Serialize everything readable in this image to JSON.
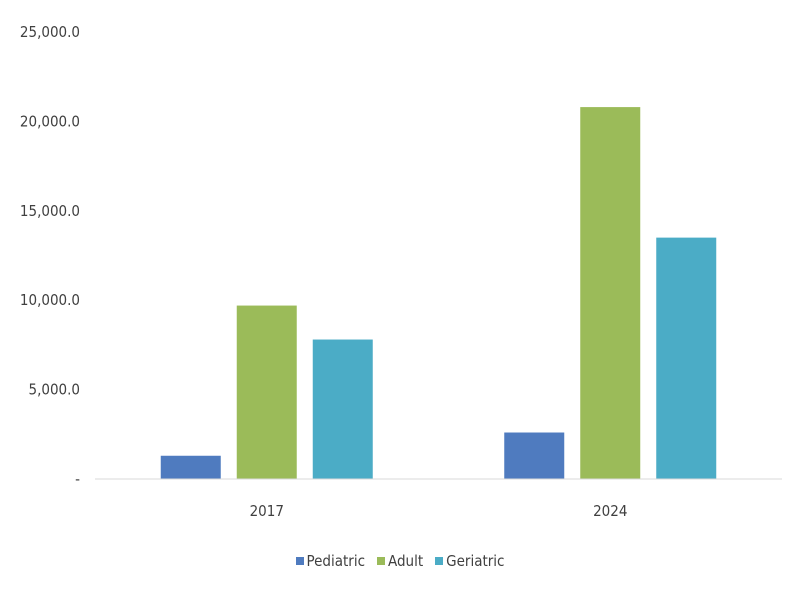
{
  "chart_data": {
    "type": "bar",
    "categories": [
      "2017",
      "2024"
    ],
    "series": [
      {
        "name": "Pediatric",
        "values": [
          1300,
          2600
        ],
        "color": "#4f7bbf"
      },
      {
        "name": "Adult",
        "values": [
          9700,
          20800
        ],
        "color": "#9bbb59"
      },
      {
        "name": "Geriatric",
        "values": [
          7800,
          13500
        ],
        "color": "#4bacc6"
      }
    ],
    "y_ticks": [
      "-",
      "5,000.0",
      "10,000.0",
      "15,000.0",
      "20,000.0",
      "25,000.0"
    ],
    "ylim": [
      0,
      25000
    ],
    "legend_position": "bottom",
    "grid": false,
    "title": "",
    "xlabel": "",
    "ylabel": ""
  }
}
